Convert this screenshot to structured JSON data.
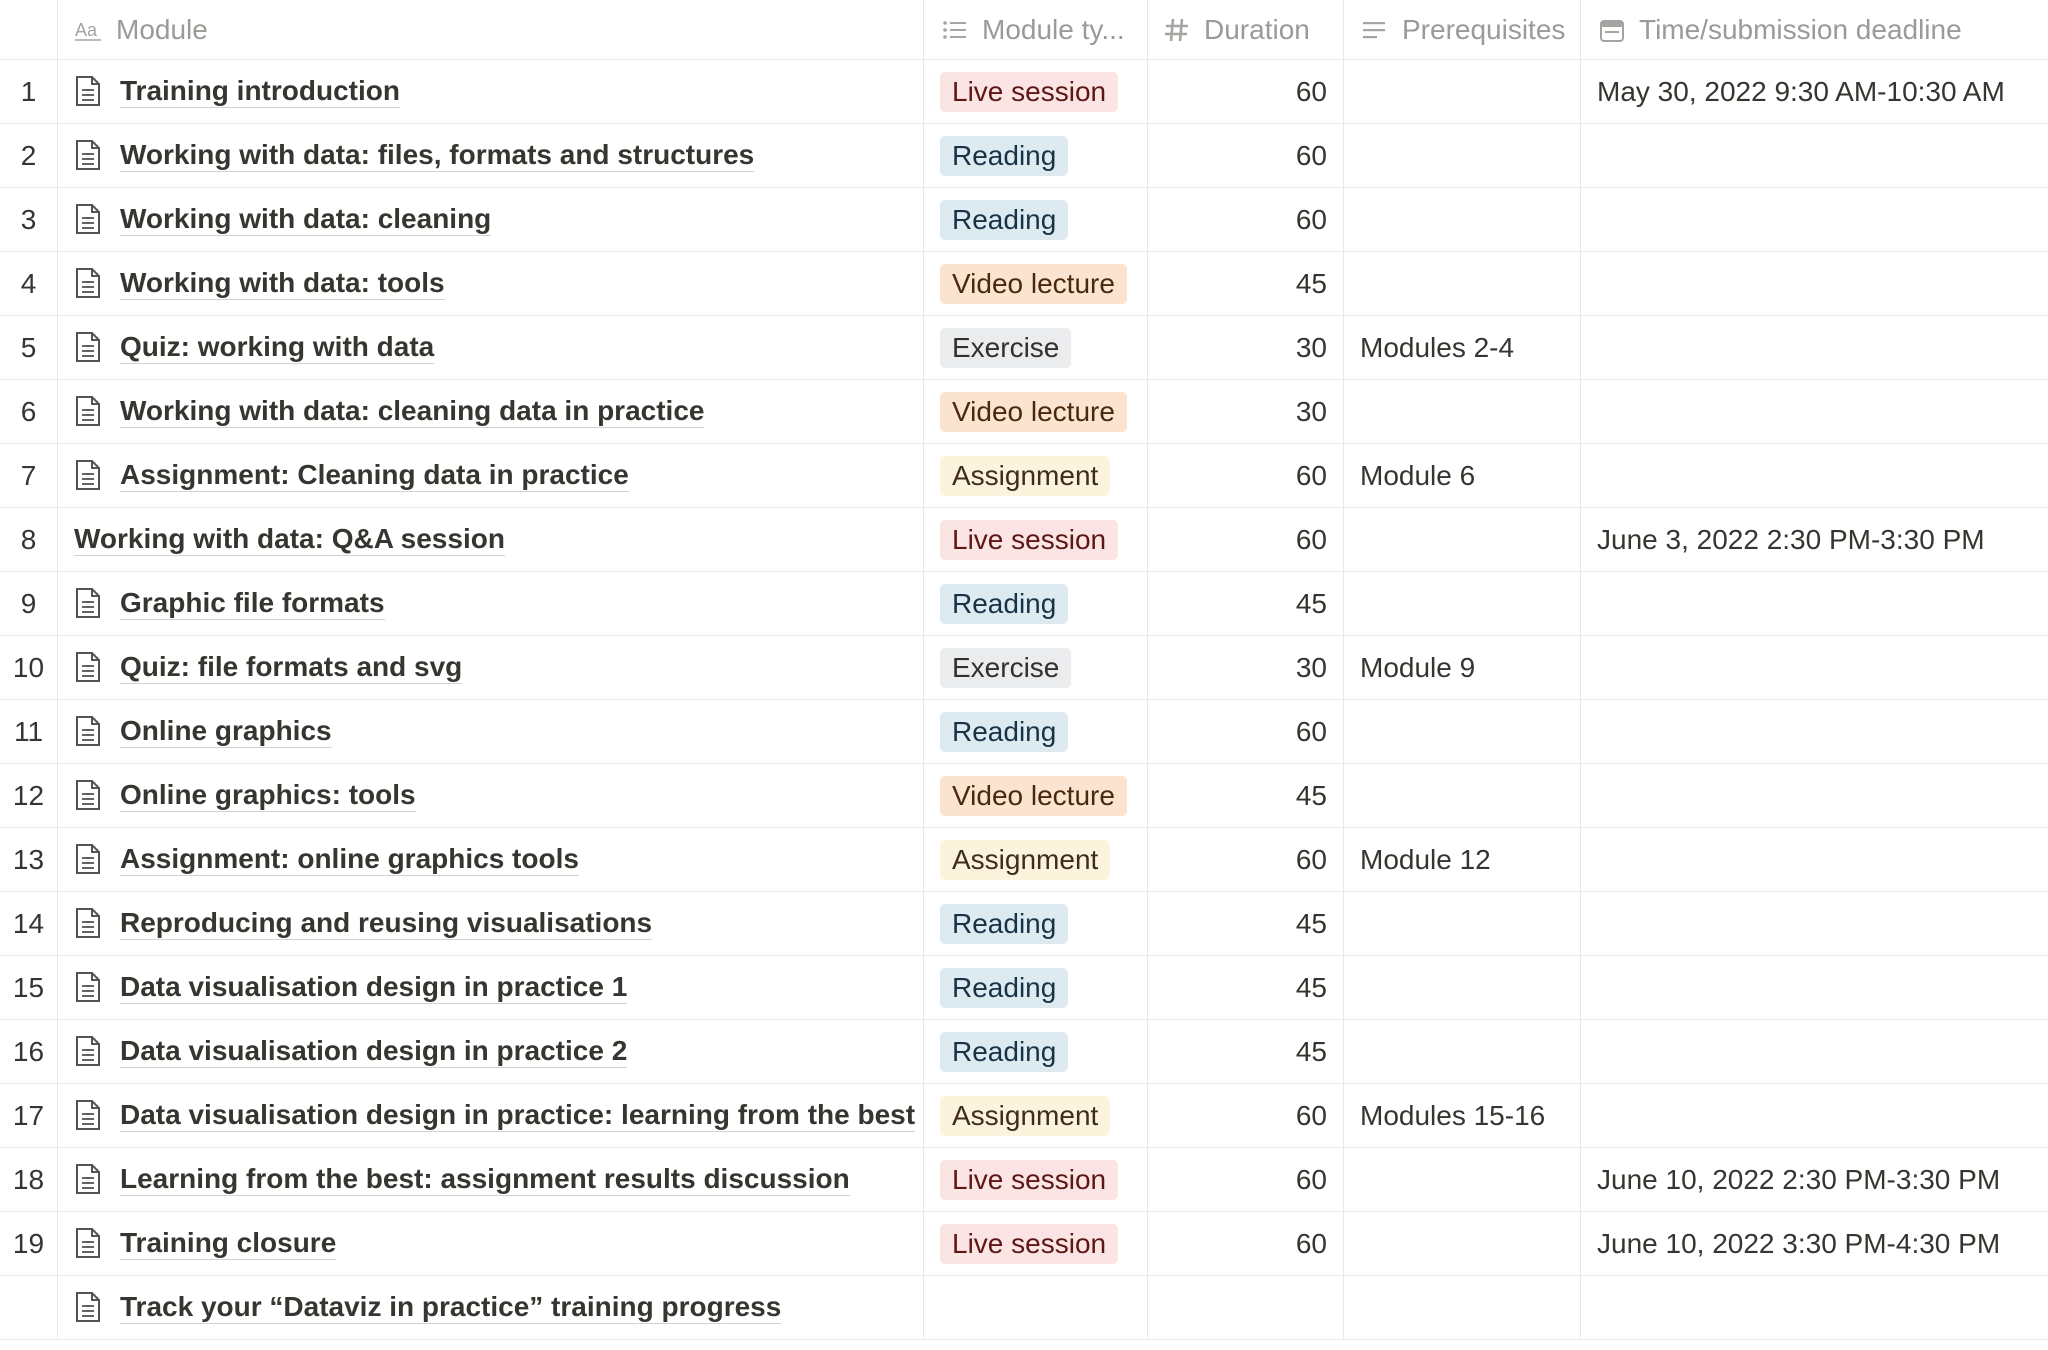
{
  "columns": {
    "module": "Module",
    "module_type": "Module ty...",
    "duration": "Duration",
    "prerequisites": "Prerequisites",
    "time": "Time/submission deadline",
    "icons": {
      "module": "text-aa-icon",
      "module_type": "list-icon",
      "duration": "hash-icon",
      "prerequisites": "paragraph-lines-icon",
      "time": "calendar-icon"
    }
  },
  "tag_colors": {
    "Live session": "red",
    "Reading": "blue",
    "Video lecture": "orange",
    "Exercise": "gray",
    "Assignment": "yellow"
  },
  "rows": [
    {
      "num": "1",
      "name": "Training introduction",
      "icon": true,
      "type": "Live session",
      "duration": "60",
      "prereq": "",
      "time": "May 30, 2022 9:30 AM-10:30 AM"
    },
    {
      "num": "2",
      "name": "Working with data: files, formats and structures",
      "icon": true,
      "type": "Reading",
      "duration": "60",
      "prereq": "",
      "time": ""
    },
    {
      "num": "3",
      "name": "Working with data: cleaning",
      "icon": true,
      "type": "Reading",
      "duration": "60",
      "prereq": "",
      "time": ""
    },
    {
      "num": "4",
      "name": "Working with data: tools",
      "icon": true,
      "type": "Video lecture",
      "duration": "45",
      "prereq": "",
      "time": ""
    },
    {
      "num": "5",
      "name": "Quiz: working with data",
      "icon": true,
      "type": "Exercise",
      "duration": "30",
      "prereq": "Modules 2-4",
      "time": ""
    },
    {
      "num": "6",
      "name": "Working with data: cleaning data in practice",
      "icon": true,
      "type": "Video lecture",
      "duration": "30",
      "prereq": "",
      "time": ""
    },
    {
      "num": "7",
      "name": "Assignment: Cleaning data in practice",
      "icon": true,
      "type": "Assignment",
      "duration": "60",
      "prereq": "Module 6",
      "time": ""
    },
    {
      "num": "8",
      "name": "Working with data: Q&A session",
      "icon": false,
      "type": "Live session",
      "duration": "60",
      "prereq": "",
      "time": "June 3, 2022 2:30 PM-3:30 PM"
    },
    {
      "num": "9",
      "name": "Graphic file formats",
      "icon": true,
      "type": "Reading",
      "duration": "45",
      "prereq": "",
      "time": ""
    },
    {
      "num": "10",
      "name": "Quiz: file formats and svg",
      "icon": true,
      "type": "Exercise",
      "duration": "30",
      "prereq": "Module 9",
      "time": ""
    },
    {
      "num": "11",
      "name": "Online graphics",
      "icon": true,
      "type": "Reading",
      "duration": "60",
      "prereq": "",
      "time": ""
    },
    {
      "num": "12",
      "name": "Online graphics: tools",
      "icon": true,
      "type": "Video lecture",
      "duration": "45",
      "prereq": "",
      "time": ""
    },
    {
      "num": "13",
      "name": "Assignment: online graphics tools",
      "icon": true,
      "type": "Assignment",
      "duration": "60",
      "prereq": "Module 12",
      "time": ""
    },
    {
      "num": "14",
      "name": "Reproducing and reusing visualisations",
      "icon": true,
      "type": "Reading",
      "duration": "45",
      "prereq": "",
      "time": ""
    },
    {
      "num": "15",
      "name": "Data visualisation design in practice 1",
      "icon": true,
      "type": "Reading",
      "duration": "45",
      "prereq": "",
      "time": ""
    },
    {
      "num": "16",
      "name": "Data visualisation design in practice 2",
      "icon": true,
      "type": "Reading",
      "duration": "45",
      "prereq": "",
      "time": ""
    },
    {
      "num": "17",
      "name": "Data visualisation design in practice: learning from the best",
      "icon": true,
      "type": "Assignment",
      "duration": "60",
      "prereq": "Modules 15-16",
      "time": ""
    },
    {
      "num": "18",
      "name": "Learning from the best: assignment results discussion",
      "icon": true,
      "type": "Live session",
      "duration": "60",
      "prereq": "",
      "time": "June 10, 2022 2:30 PM-3:30 PM"
    },
    {
      "num": "19",
      "name": "Training closure",
      "icon": true,
      "type": "Live session",
      "duration": "60",
      "prereq": "",
      "time": "June 10, 2022 3:30 PM-4:30 PM"
    },
    {
      "num": "",
      "name": "Track your “Dataviz in practice” training progress",
      "icon": true,
      "type": "",
      "duration": "",
      "prereq": "",
      "time": ""
    }
  ]
}
